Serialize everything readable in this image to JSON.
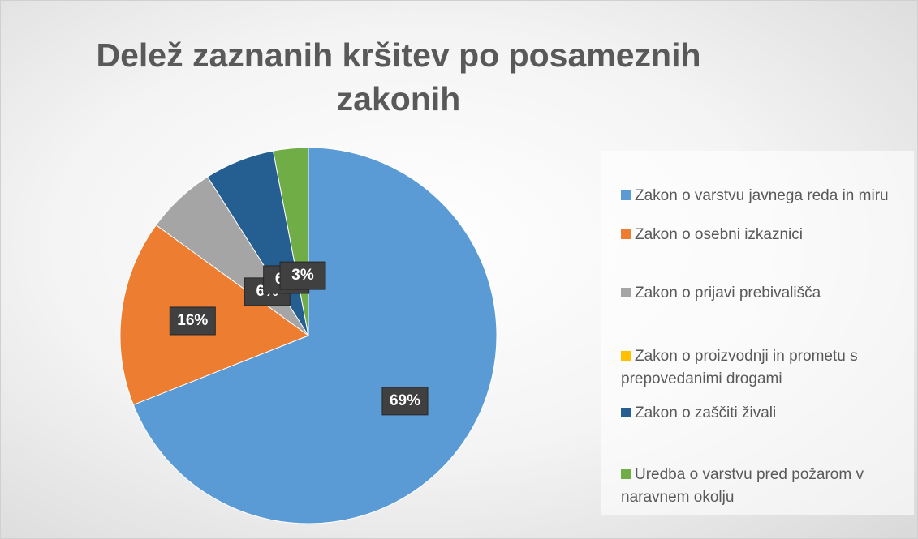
{
  "chart_data": {
    "type": "pie",
    "title": "Delež zaznanih kršitev po posameznih zakonih",
    "categories": [
      "Zakon o varstvu javnega reda in miru",
      "Zakon o osebni izkaznici",
      "Zakon o prijavi prebivališča",
      "Zakon o proizvodnji in prometu s prepovedanimi drogami",
      "Zakon o zaščiti živali",
      "Uredba o varstvu pred požarom v naravnem okolju"
    ],
    "values": [
      69,
      16,
      6,
      0,
      6,
      3
    ],
    "value_labels": [
      "69%",
      "16%",
      "6%",
      null,
      "6%",
      "3%"
    ],
    "colors": [
      "#5b9bd5",
      "#ed7d31",
      "#a5a5a5",
      "#ffc000",
      "#255e91",
      "#70ad47"
    ],
    "legend": "right"
  }
}
